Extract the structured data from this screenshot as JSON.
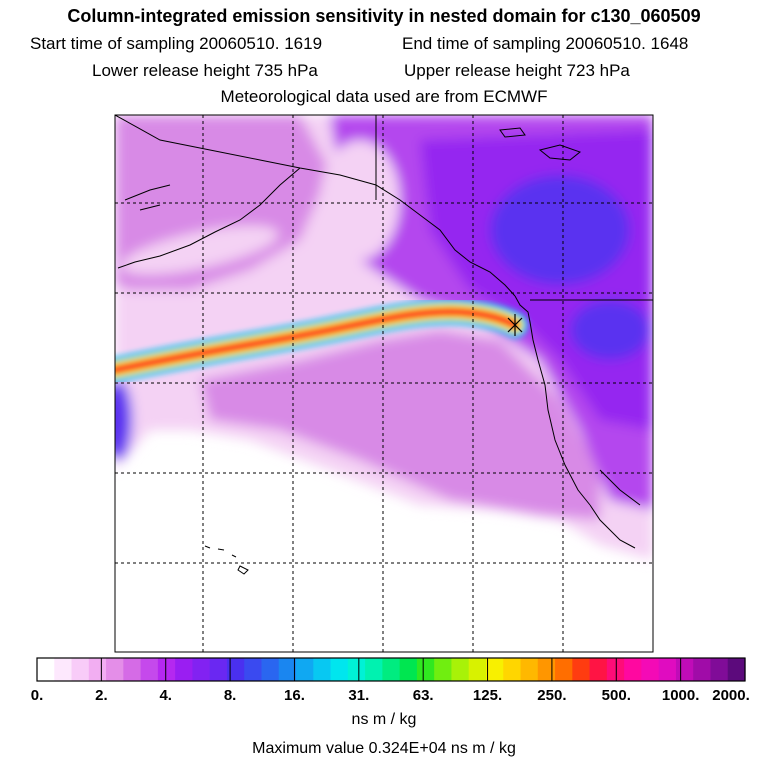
{
  "title": "Column-integrated emission sensitivity in nested domain for c130_060509",
  "start_label": "Start time of sampling 20060510.  1619",
  "end_label": "End time of sampling 20060510.  1648",
  "lower_label": "Lower release height  735 hPa",
  "upper_label": "Upper release height  723 hPa",
  "met_label": "Meteorological data used are from ECMWF",
  "colorbar": {
    "tick_labels": [
      "0.",
      "2.",
      "4.",
      "8.",
      "16.",
      "31.",
      "63.",
      "125.",
      "250.",
      "500.",
      "1000.",
      "2000."
    ],
    "colors": [
      "#ffffff",
      "#fde8fd",
      "#f8ccf8",
      "#f2aef2",
      "#e48ee8",
      "#d56be6",
      "#c549ec",
      "#b528f0",
      "#9a1ef2",
      "#8222f2",
      "#6a28f2",
      "#4a30f0",
      "#3a4af0",
      "#2a66f0",
      "#1a86f0",
      "#10a8f2",
      "#08c8f2",
      "#00e6ee",
      "#00f2d6",
      "#00f2b0",
      "#00ec80",
      "#00e650",
      "#30e820",
      "#70ee10",
      "#a8f208",
      "#d8f200",
      "#f8f000",
      "#ffd600",
      "#ffb800",
      "#ff9600",
      "#ff6e00",
      "#ff3c10",
      "#ff1444",
      "#ff0c78",
      "#ff08a0",
      "#f40ab6",
      "#e00cc0",
      "#c00cb8",
      "#a00ca8",
      "#800c98",
      "#5c0a7c"
    ],
    "units": "ns m / kg",
    "max_label": "Maximum value  0.324E+04 ns m / kg"
  },
  "map": {
    "colors": {
      "background": "#ffffff",
      "light": "#f4d2f4",
      "medium": "#d88ae6",
      "violet": "#b446ee",
      "purple": "#9528f0",
      "blue": "#5a30f0",
      "plume_edge": "#1ec8ee",
      "plume_mid": "#f4e800",
      "plume_core": "#ff2a2a",
      "coast": "#000000",
      "grid": "#000000"
    }
  }
}
